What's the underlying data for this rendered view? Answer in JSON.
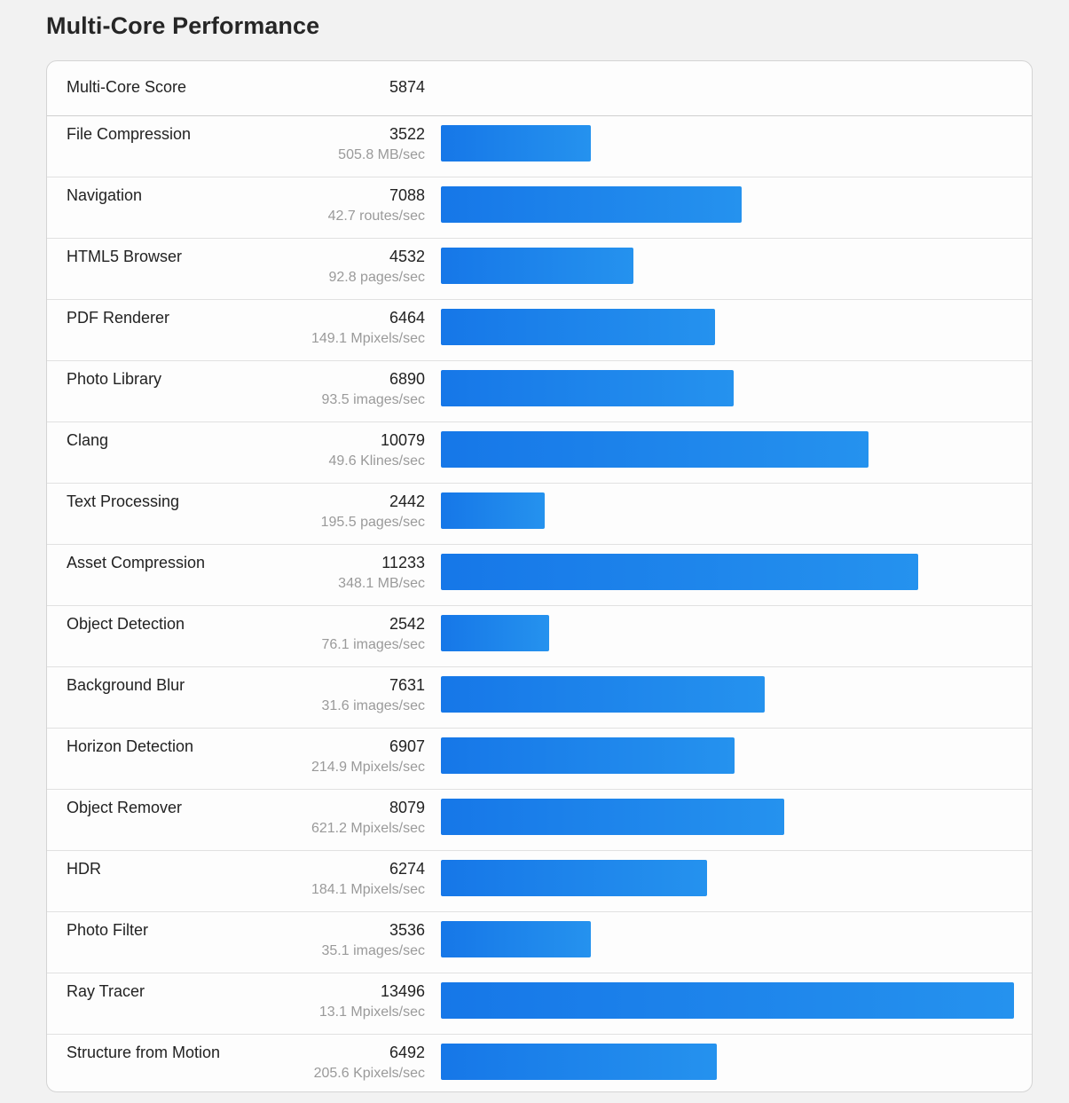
{
  "title": "Multi-Core Performance",
  "summary": {
    "label": "Multi-Core Score",
    "score": "5874"
  },
  "bar_max": 13496,
  "colors": {
    "bar_start": "#1677e8",
    "bar_end": "#2592ee"
  },
  "tests": [
    {
      "name": "File Compression",
      "score": "3522",
      "unit": "505.8 MB/sec",
      "value": 3522
    },
    {
      "name": "Navigation",
      "score": "7088",
      "unit": "42.7 routes/sec",
      "value": 7088
    },
    {
      "name": "HTML5 Browser",
      "score": "4532",
      "unit": "92.8 pages/sec",
      "value": 4532
    },
    {
      "name": "PDF Renderer",
      "score": "6464",
      "unit": "149.1 Mpixels/sec",
      "value": 6464
    },
    {
      "name": "Photo Library",
      "score": "6890",
      "unit": "93.5 images/sec",
      "value": 6890
    },
    {
      "name": "Clang",
      "score": "10079",
      "unit": "49.6 Klines/sec",
      "value": 10079
    },
    {
      "name": "Text Processing",
      "score": "2442",
      "unit": "195.5 pages/sec",
      "value": 2442
    },
    {
      "name": "Asset Compression",
      "score": "11233",
      "unit": "348.1 MB/sec",
      "value": 11233
    },
    {
      "name": "Object Detection",
      "score": "2542",
      "unit": "76.1 images/sec",
      "value": 2542
    },
    {
      "name": "Background Blur",
      "score": "7631",
      "unit": "31.6 images/sec",
      "value": 7631
    },
    {
      "name": "Horizon Detection",
      "score": "6907",
      "unit": "214.9 Mpixels/sec",
      "value": 6907
    },
    {
      "name": "Object Remover",
      "score": "8079",
      "unit": "621.2 Mpixels/sec",
      "value": 8079
    },
    {
      "name": "HDR",
      "score": "6274",
      "unit": "184.1 Mpixels/sec",
      "value": 6274
    },
    {
      "name": "Photo Filter",
      "score": "3536",
      "unit": "35.1 images/sec",
      "value": 3536
    },
    {
      "name": "Ray Tracer",
      "score": "13496",
      "unit": "13.1 Mpixels/sec",
      "value": 13496
    },
    {
      "name": "Structure from Motion",
      "score": "6492",
      "unit": "205.6 Kpixels/sec",
      "value": 6492
    }
  ]
}
